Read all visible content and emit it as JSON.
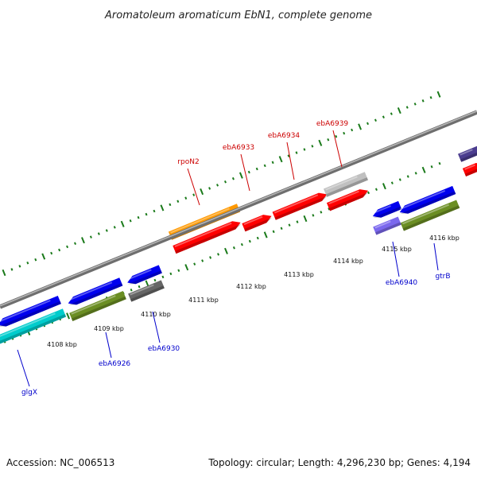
{
  "title": "Aromatoleum aromaticum EbN1, complete genome",
  "accession": "Accession: NC_006513",
  "topology": "Topology: circular; Length: 4,296,230 bp; Genes: 4,194",
  "colors": {
    "backbone": "#8c8c8c",
    "tick": "#1a7a1a",
    "label_forward": "#cc0000",
    "label_reverse": "#0000cc"
  },
  "kbp_ticks": [
    "4108 kbp",
    "4109 kbp",
    "4110 kbp",
    "4111 kbp",
    "4112 kbp",
    "4113 kbp",
    "4114 kbp",
    "4115 kbp",
    "4116 kbp"
  ],
  "gene_labels": [
    {
      "text": "rpoN2",
      "color": "#cc0000"
    },
    {
      "text": "ebA6933",
      "color": "#cc0000"
    },
    {
      "text": "ebA6934",
      "color": "#cc0000"
    },
    {
      "text": "ebA6939",
      "color": "#cc0000"
    },
    {
      "text": "glgX",
      "color": "#0000cc"
    },
    {
      "text": "ebA6926",
      "color": "#0000cc"
    },
    {
      "text": "ebA6930",
      "color": "#0000cc"
    },
    {
      "text": "ebA6940",
      "color": "#0000cc"
    },
    {
      "text": "gtrB",
      "color": "#0000cc"
    }
  ],
  "genes": [
    {
      "color": "#ff0000",
      "strand": "forward"
    },
    {
      "color": "#ff0000",
      "strand": "forward"
    },
    {
      "color": "#ff0000",
      "strand": "forward"
    },
    {
      "color": "#ff0000",
      "strand": "forward"
    },
    {
      "color": "#ff0000",
      "strand": "forward"
    },
    {
      "color": "#ff9900",
      "strand": "forward"
    },
    {
      "color": "#c0c0c0",
      "strand": "forward"
    },
    {
      "color": "#4b3d8f",
      "strand": "forward"
    },
    {
      "color": "#0000ee",
      "strand": "reverse"
    },
    {
      "color": "#0000ee",
      "strand": "reverse"
    },
    {
      "color": "#0000ee",
      "strand": "reverse"
    },
    {
      "color": "#0000ee",
      "strand": "reverse"
    },
    {
      "color": "#0000ee",
      "strand": "reverse"
    },
    {
      "color": "#00cccc",
      "strand": "reverse"
    },
    {
      "color": "#6b8e23",
      "strand": "reverse"
    },
    {
      "color": "#6b8e23",
      "strand": "reverse"
    },
    {
      "color": "#666666",
      "strand": "reverse"
    },
    {
      "color": "#7b68ee",
      "strand": "reverse"
    }
  ]
}
